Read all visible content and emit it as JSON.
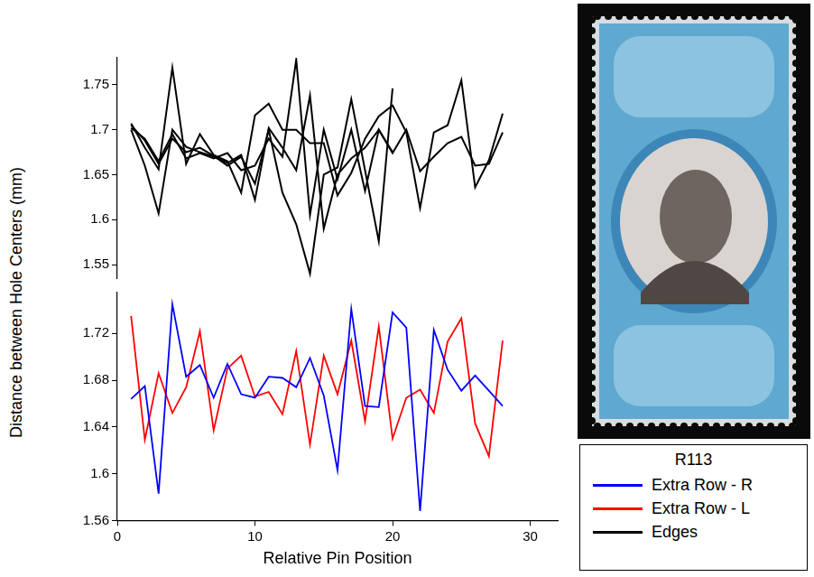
{
  "chart_data": [
    {
      "type": "line",
      "x": [
        1,
        2,
        3,
        4,
        5,
        6,
        7,
        8,
        9,
        10,
        11,
        12,
        13,
        14,
        15,
        16,
        17,
        18,
        19,
        20,
        21,
        22,
        23,
        24,
        25,
        26,
        27,
        28
      ],
      "series": [
        {
          "name": "Edges",
          "color": "#000000",
          "values": [
            1.707,
            1.68,
            1.656,
            1.769,
            1.662,
            1.695,
            1.672,
            1.665,
            1.63,
            1.716,
            1.729,
            1.7,
            1.7,
            1.685,
            1.685,
            1.627,
            1.652,
            1.69,
            1.715,
            1.727,
            1.697,
            1.613,
            1.697,
            1.705,
            1.755,
            1.636,
            1.666,
            1.718
          ]
        },
        {
          "name": "Edges",
          "color": "#000000",
          "values": [
            1.7,
            1.66,
            1.607,
            1.7,
            1.681,
            1.675,
            1.67,
            1.663,
            1.672,
            1.622,
            1.702,
            1.68,
            1.655,
            1.738,
            1.59,
            1.65,
            1.668,
            1.68,
            1.7,
            1.674,
            1.7,
            1.654,
            1.67,
            1.685,
            1.692,
            1.66,
            1.662,
            1.697
          ]
        },
        {
          "name": "Edges",
          "color": "#000000",
          "values": [
            1.705,
            1.688,
            1.662,
            1.69,
            1.675,
            1.68,
            1.671,
            1.66,
            1.67,
            1.64,
            1.7,
            1.63,
            1.595,
            1.54,
            1.65,
            1.658,
            1.734,
            1.655,
            1.576,
            1.746,
            null,
            null,
            null,
            null,
            null,
            null,
            null,
            null
          ]
        },
        {
          "name": "Edges",
          "color": "#000000",
          "values": [
            1.702,
            1.69,
            1.665,
            1.695,
            1.668,
            1.674,
            1.668,
            1.674,
            1.655,
            1.66,
            1.69,
            1.67,
            1.778,
            1.605,
            1.7,
            1.645,
            1.7,
            1.632,
            1.7,
            1.675,
            null,
            null,
            null,
            null,
            null,
            null,
            null,
            null
          ]
        }
      ],
      "xlim": [
        0,
        32
      ],
      "ylim": [
        1.535,
        1.78
      ],
      "yticks": [
        1.55,
        1.6,
        1.65,
        1.7,
        1.75
      ],
      "tick_labels": "y",
      "grid": false
    },
    {
      "type": "line",
      "x": [
        1,
        2,
        3,
        4,
        5,
        6,
        7,
        8,
        9,
        10,
        11,
        12,
        13,
        14,
        15,
        16,
        17,
        18,
        19,
        20,
        21,
        22,
        23,
        24,
        25,
        26,
        27,
        28
      ],
      "series": [
        {
          "name": "Extra Row - R",
          "color": "#0000ff",
          "values": [
            1.664,
            1.675,
            1.583,
            1.745,
            1.683,
            1.693,
            1.665,
            1.694,
            1.668,
            1.665,
            1.683,
            1.682,
            1.674,
            1.699,
            1.667,
            1.603,
            1.741,
            1.658,
            1.657,
            1.738,
            1.725,
            1.568,
            1.723,
            1.689,
            1.671,
            1.684,
            1.671,
            1.658
          ]
        },
        {
          "name": "Extra Row - L",
          "color": "#ff0000",
          "values": [
            1.735,
            1.629,
            1.686,
            1.652,
            1.674,
            1.722,
            1.637,
            1.69,
            1.701,
            1.666,
            1.67,
            1.651,
            1.705,
            1.625,
            1.701,
            1.668,
            1.714,
            1.645,
            1.726,
            1.63,
            1.665,
            1.672,
            1.652,
            1.713,
            1.733,
            1.643,
            1.615,
            1.714
          ]
        }
      ],
      "xlabel": "Relative Pin Position",
      "ylabel": "Distance between Hole Centers (mm)",
      "xlim": [
        0,
        32
      ],
      "xticks": [
        0,
        10,
        20,
        30
      ],
      "ylim": [
        1.56,
        1.755
      ],
      "yticks": [
        1.56,
        1.6,
        1.64,
        1.68,
        1.72
      ],
      "grid": false,
      "legend": "bottom right",
      "legend_title": "R113"
    }
  ]
}
